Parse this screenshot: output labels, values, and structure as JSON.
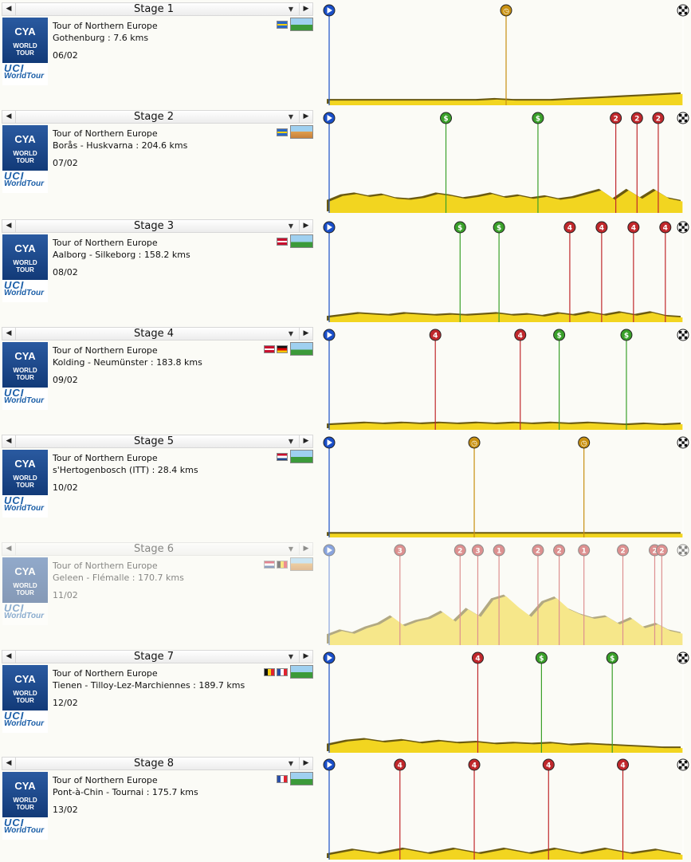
{
  "stages": [
    {
      "title": "Stage 1",
      "race": "Tour of Northern Europe",
      "route": "Gothenburg : 7.6 kms",
      "date": "06/02",
      "flags": [
        "sweden"
      ],
      "terrain": "flat-terrain-icon",
      "markers": [
        {
          "pos": 0.5,
          "cat": "C"
        }
      ],
      "profile": [
        0.05,
        0.05,
        0.05,
        0.05,
        0.05,
        0.05,
        0.05,
        0.05,
        0.05,
        0.06,
        0.05,
        0.05,
        0.05,
        0.06,
        0.07,
        0.08,
        0.09,
        0.1,
        0.11,
        0.12
      ]
    },
    {
      "title": "Stage 2",
      "race": "Tour of Northern Europe",
      "route": "Borås - Huskvarna : 204.6 kms",
      "date": "07/02",
      "flags": [
        "sweden"
      ],
      "terrain": "hilly-terrain-icon",
      "markers": [
        {
          "pos": 0.33,
          "cat": "S"
        },
        {
          "pos": 0.59,
          "cat": "S"
        },
        {
          "pos": 0.81,
          "cat": "2"
        },
        {
          "pos": 0.87,
          "cat": "2"
        },
        {
          "pos": 0.93,
          "cat": "2"
        }
      ],
      "profile": [
        0.12,
        0.18,
        0.2,
        0.17,
        0.19,
        0.15,
        0.14,
        0.16,
        0.2,
        0.18,
        0.15,
        0.17,
        0.2,
        0.16,
        0.18,
        0.15,
        0.17,
        0.14,
        0.16,
        0.2,
        0.24,
        0.14,
        0.24,
        0.15,
        0.24,
        0.15,
        0.12
      ]
    },
    {
      "title": "Stage 3",
      "race": "Tour of Northern Europe",
      "route": "Aalborg - Silkeborg : 158.2 kms",
      "date": "08/02",
      "flags": [
        "denmark"
      ],
      "terrain": "flat-terrain-icon",
      "markers": [
        {
          "pos": 0.37,
          "cat": "S"
        },
        {
          "pos": 0.48,
          "cat": "S"
        },
        {
          "pos": 0.68,
          "cat": "4"
        },
        {
          "pos": 0.77,
          "cat": "4"
        },
        {
          "pos": 0.86,
          "cat": "4"
        },
        {
          "pos": 0.95,
          "cat": "4"
        }
      ],
      "profile": [
        0.05,
        0.07,
        0.09,
        0.08,
        0.07,
        0.09,
        0.08,
        0.07,
        0.08,
        0.07,
        0.08,
        0.09,
        0.07,
        0.08,
        0.06,
        0.09,
        0.07,
        0.1,
        0.07,
        0.1,
        0.07,
        0.1,
        0.06,
        0.05
      ]
    },
    {
      "title": "Stage 4",
      "race": "Tour of Northern Europe",
      "route": "Kolding - Neumünster : 183.8 kms",
      "date": "09/02",
      "flags": [
        "denmark",
        "germany"
      ],
      "terrain": "flat-terrain-icon",
      "markers": [
        {
          "pos": 0.3,
          "cat": "4"
        },
        {
          "pos": 0.54,
          "cat": "4"
        },
        {
          "pos": 0.65,
          "cat": "S"
        },
        {
          "pos": 0.84,
          "cat": "S"
        }
      ],
      "profile": [
        0.05,
        0.06,
        0.07,
        0.06,
        0.07,
        0.06,
        0.07,
        0.06,
        0.07,
        0.06,
        0.07,
        0.06,
        0.07,
        0.06,
        0.07,
        0.06,
        0.05,
        0.06,
        0.05,
        0.06
      ]
    },
    {
      "title": "Stage 5",
      "race": "Tour of Northern Europe",
      "route": "s'Hertogenbosch (ITT) : 28.4 kms",
      "date": "10/02",
      "flags": [
        "netherlands"
      ],
      "terrain": "flat-terrain-icon",
      "markers": [
        {
          "pos": 0.41,
          "cat": "C"
        },
        {
          "pos": 0.72,
          "cat": "C"
        }
      ],
      "profile": [
        0.04,
        0.04,
        0.04,
        0.04,
        0.04,
        0.04,
        0.04,
        0.04,
        0.04,
        0.04
      ]
    },
    {
      "title": "Stage 6",
      "race": "Tour of Northern Europe",
      "route": "Geleen - Flémalle : 170.7 kms",
      "date": "11/02",
      "flags": [
        "netherlands",
        "belgium"
      ],
      "terrain": "hilly-terrain-icon",
      "faded": true,
      "markers": [
        {
          "pos": 0.2,
          "cat": "3"
        },
        {
          "pos": 0.37,
          "cat": "2"
        },
        {
          "pos": 0.42,
          "cat": "3"
        },
        {
          "pos": 0.48,
          "cat": "1"
        },
        {
          "pos": 0.59,
          "cat": "2"
        },
        {
          "pos": 0.65,
          "cat": "2"
        },
        {
          "pos": 0.72,
          "cat": "1"
        },
        {
          "pos": 0.83,
          "cat": "2"
        },
        {
          "pos": 0.92,
          "cat": "2"
        },
        {
          "pos": 0.94,
          "cat": "2"
        }
      ],
      "profile": [
        0.1,
        0.15,
        0.12,
        0.18,
        0.22,
        0.3,
        0.2,
        0.25,
        0.28,
        0.35,
        0.25,
        0.38,
        0.3,
        0.48,
        0.52,
        0.4,
        0.3,
        0.45,
        0.5,
        0.38,
        0.32,
        0.28,
        0.3,
        0.22,
        0.28,
        0.18,
        0.22,
        0.15,
        0.12
      ]
    },
    {
      "title": "Stage 7",
      "race": "Tour of Northern Europe",
      "route": "Tienen - Tilloy-Lez-Marchiennes : 189.7 kms",
      "date": "12/02",
      "flags": [
        "belgium",
        "france"
      ],
      "terrain": "flat-terrain-icon",
      "markers": [
        {
          "pos": 0.42,
          "cat": "4"
        },
        {
          "pos": 0.6,
          "cat": "S"
        },
        {
          "pos": 0.8,
          "cat": "S"
        }
      ],
      "profile": [
        0.08,
        0.12,
        0.14,
        0.11,
        0.13,
        0.1,
        0.12,
        0.1,
        0.11,
        0.09,
        0.1,
        0.09,
        0.1,
        0.08,
        0.09,
        0.08,
        0.07,
        0.06,
        0.05,
        0.05
      ]
    },
    {
      "title": "Stage 8",
      "race": "Tour of Northern Europe",
      "route": "Pont-à-Chin - Tournai : 175.7 kms",
      "date": "13/02",
      "flags": [
        "france"
      ],
      "terrain": "flat-terrain-icon",
      "markers": [
        {
          "pos": 0.2,
          "cat": "4"
        },
        {
          "pos": 0.41,
          "cat": "4"
        },
        {
          "pos": 0.62,
          "cat": "4"
        },
        {
          "pos": 0.83,
          "cat": "4"
        }
      ],
      "profile": [
        0.05,
        0.1,
        0.06,
        0.11,
        0.06,
        0.11,
        0.06,
        0.11,
        0.06,
        0.11,
        0.06,
        0.11,
        0.06,
        0.1,
        0.05
      ]
    }
  ],
  "logo": {
    "brand": "CYA",
    "line1": "WORLD",
    "line2": "TOUR",
    "uci": "UCI",
    "uci_sub": "WorldTour"
  },
  "icons": {
    "prev": "◀",
    "next": "▶",
    "dropdown": "▼"
  },
  "colors": {
    "profile": "#f2d520",
    "sprint": "#3aa02a",
    "kom": "#c0282c",
    "chrono": "#c89010",
    "start": "#1a4fc8"
  }
}
